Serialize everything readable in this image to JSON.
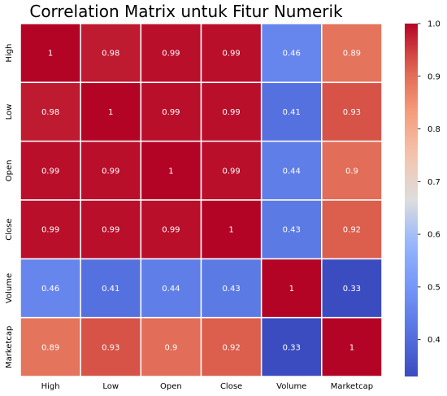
{
  "chart_data": {
    "type": "heatmap",
    "title": "Correlation Matrix untuk Fitur Numerik",
    "x_categories": [
      "High",
      "Low",
      "Open",
      "Close",
      "Volume",
      "Marketcap"
    ],
    "y_categories": [
      "High",
      "Low",
      "Open",
      "Close",
      "Volume",
      "Marketcap"
    ],
    "values": [
      [
        1.0,
        0.98,
        0.99,
        0.99,
        0.46,
        0.89
      ],
      [
        0.98,
        1.0,
        0.99,
        0.99,
        0.41,
        0.93
      ],
      [
        0.99,
        0.99,
        1.0,
        0.99,
        0.44,
        0.9
      ],
      [
        0.99,
        0.99,
        0.99,
        1.0,
        0.43,
        0.92
      ],
      [
        0.46,
        0.41,
        0.44,
        0.43,
        1.0,
        0.33
      ],
      [
        0.89,
        0.93,
        0.9,
        0.92,
        0.33,
        1.0
      ]
    ],
    "annotations": [
      [
        "1",
        "0.98",
        "0.99",
        "0.99",
        "0.46",
        "0.89"
      ],
      [
        "0.98",
        "1",
        "0.99",
        "0.99",
        "0.41",
        "0.93"
      ],
      [
        "0.99",
        "0.99",
        "1",
        "0.99",
        "0.44",
        "0.9"
      ],
      [
        "0.99",
        "0.99",
        "0.99",
        "1",
        "0.43",
        "0.92"
      ],
      [
        "0.46",
        "0.41",
        "0.44",
        "0.43",
        "1",
        "0.33"
      ],
      [
        "0.89",
        "0.93",
        "0.9",
        "0.92",
        "0.33",
        "1"
      ]
    ],
    "colormap": "coolwarm",
    "value_range": [
      0.33,
      1.0
    ],
    "colorbar": {
      "ticks": [
        0.4,
        0.5,
        0.6,
        0.7,
        0.8,
        0.9,
        1.0
      ],
      "tick_labels": [
        "0.4",
        "0.5",
        "0.6",
        "0.7",
        "0.8",
        "0.9",
        "1.0"
      ],
      "placement": "right"
    },
    "grid_line_color": "#ffffff"
  }
}
